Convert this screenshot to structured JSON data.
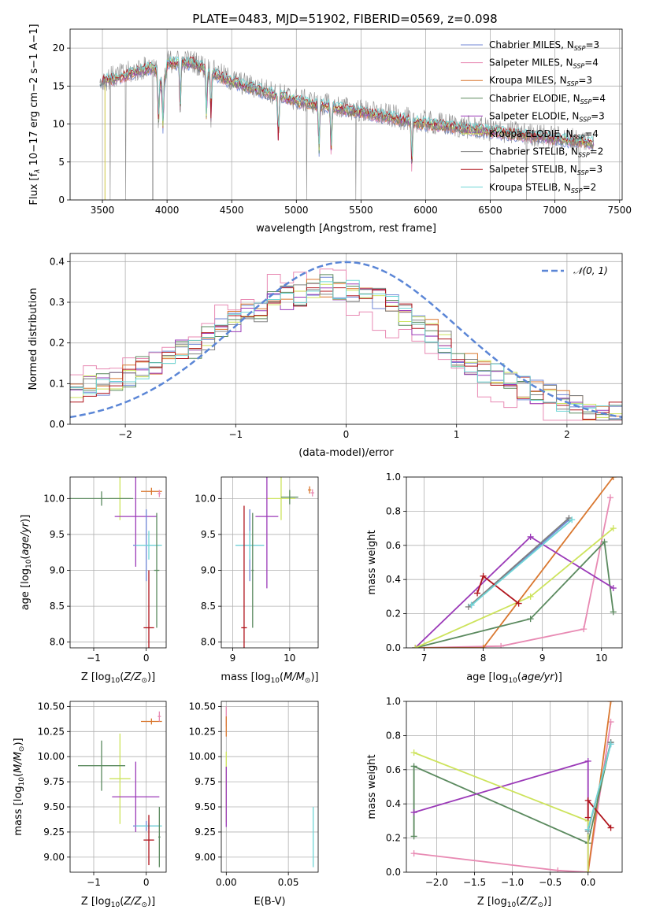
{
  "title": "PLATE=0483, MJD=51902, FIBERID=0569, z=0.098",
  "colors": {
    "chabrier_miles": "#6f86d6",
    "salpeter_miles": "#e88ab3",
    "kroupa_miles": "#d9772f",
    "chabrier_elodie": "#5b8a5f",
    "salpeter_elodie": "#9b3ab8",
    "kroupa_elodie": "#cde35c",
    "chabrier_stelib": "#808080",
    "salpeter_stelib": "#b0141c",
    "kroupa_stelib": "#6fd6d6",
    "gauss": "#5b86d6",
    "grid": "#b0b0b0"
  },
  "legend1": {
    "entries": [
      {
        "base": "Chabrier MILES, N",
        "sub": "SSP",
        "tail": "=3",
        "color": "chabrier_miles"
      },
      {
        "base": "Salpeter MILES, N",
        "sub": "SSP",
        "tail": "=4",
        "color": "salpeter_miles"
      },
      {
        "base": "Kroupa MILES, N",
        "sub": "SSP",
        "tail": "=3",
        "color": "kroupa_miles"
      },
      {
        "base": "Chabrier ELODIE, N",
        "sub": "SSP",
        "tail": "=4",
        "color": "chabrier_elodie"
      },
      {
        "base": "Salpeter ELODIE, N",
        "sub": "SSP",
        "tail": "=3",
        "color": "salpeter_elodie"
      },
      {
        "base": "Kroupa ELODIE, N",
        "sub": "SSP",
        "tail": "=4",
        "color": "kroupa_elodie"
      },
      {
        "base": "Chabrier STELIB, N",
        "sub": "SSP",
        "tail": "=2",
        "color": "chabrier_stelib"
      },
      {
        "base": "Salpeter STELIB, N",
        "sub": "SSP",
        "tail": "=3",
        "color": "salpeter_stelib"
      },
      {
        "base": "Kroupa STELIB, N",
        "sub": "SSP",
        "tail": "=2",
        "color": "kroupa_stelib"
      }
    ]
  },
  "legend2": {
    "label": "𝒩(0, 1)"
  },
  "chart_data": [
    {
      "type": "line",
      "title": "PLATE=0483, MJD=51902, FIBERID=0569, z=0.098",
      "xlabel": "wavelength [Angstrom, rest frame]",
      "ylabel_parts": [
        "Flux [f",
        "λ",
        "10",
        "−17",
        " erg cm",
        "−2",
        " s",
        "−1",
        " A",
        "−1",
        "]"
      ],
      "xlim": [
        3250,
        7520
      ],
      "ylim": [
        0,
        22.5
      ],
      "xticks": [
        3500,
        4000,
        4500,
        5000,
        5500,
        6000,
        6500,
        7000,
        7500
      ],
      "yticks": [
        0,
        5,
        10,
        15,
        20
      ],
      "continuum": {
        "x": [
          3480,
          3600,
          3800,
          4000,
          4200,
          4500,
          5000,
          5500,
          6000,
          6500,
          7000,
          7300
        ],
        "y": [
          15.5,
          16,
          17,
          18,
          18,
          15.5,
          13,
          11.5,
          10,
          9,
          8,
          7.5
        ]
      },
      "absorption_lines": [
        3934,
        3969,
        4102,
        4305,
        4340,
        4861,
        5175,
        5270,
        5893
      ],
      "spikes": [
        3560,
        3680,
        3890,
        5080,
        5460,
        6780,
        7190
      ],
      "x_range": [
        3480,
        7300
      ]
    },
    {
      "type": "line",
      "xlabel": "(data-model)/error",
      "ylabel": "Normed distribution",
      "xlim": [
        -2.5,
        2.5
      ],
      "ylim": [
        0,
        0.42
      ],
      "xticks": [
        -2,
        -1,
        0,
        1,
        2
      ],
      "yticks": [
        0.0,
        0.1,
        0.2,
        0.3,
        0.4
      ],
      "bin_edges": [
        -2.5,
        2.5
      ],
      "n_bins": 42,
      "histogram_base": [
        0.08,
        0.09,
        0.1,
        0.11,
        0.12,
        0.14,
        0.15,
        0.16,
        0.18,
        0.19,
        0.21,
        0.23,
        0.25,
        0.27,
        0.28,
        0.3,
        0.31,
        0.32,
        0.33,
        0.34,
        0.33,
        0.33,
        0.32,
        0.31,
        0.29,
        0.27,
        0.25,
        0.23,
        0.2,
        0.17,
        0.15,
        0.13,
        0.12,
        0.1,
        0.09,
        0.08,
        0.07,
        0.06,
        0.05,
        0.04,
        0.03,
        0.025
      ],
      "gaussian": {
        "mu": 0,
        "sigma": 1
      }
    },
    {
      "type": "scatter",
      "xlabel": "Z [log10(Z/Z⊙)]",
      "ylabel": "age  [log10(age/yr)]",
      "xlim": [
        -1.45,
        0.38
      ],
      "ylim": [
        7.92,
        10.3
      ],
      "xticks": [
        -1,
        0
      ],
      "yticks": [
        8.0,
        8.5,
        9.0,
        9.5,
        10.0
      ],
      "points": [
        {
          "x": 0.1,
          "y": 10.1,
          "xerr": 0.2,
          "yerr": 0.05,
          "color": "kroupa_miles"
        },
        {
          "x": 0.25,
          "y": 10.07,
          "xerr": 0.03,
          "yerr": 0.05,
          "color": "salpeter_miles"
        },
        {
          "x": -0.5,
          "y": 10.0,
          "xerr": 0.2,
          "yerr": 0.3,
          "color": "kroupa_elodie"
        },
        {
          "x": -0.85,
          "y": 10.0,
          "xerr": 0.6,
          "yerr": 0.1,
          "color": "chabrier_elodie"
        },
        {
          "x": -0.2,
          "y": 9.75,
          "xerr": 0.4,
          "yerr": 0.7,
          "color": "salpeter_elodie"
        },
        {
          "x": 0.0,
          "y": 9.35,
          "xerr": 0.25,
          "yerr": 0.5,
          "color": "chabrier_miles"
        },
        {
          "x": 0.05,
          "y": 9.35,
          "xerr": 0.25,
          "yerr": 0.2,
          "color": "kroupa_stelib"
        },
        {
          "x": 0.2,
          "y": 9.0,
          "xerr": 0.05,
          "yerr": 0.8,
          "color": "chabrier_elodie"
        },
        {
          "x": 0.05,
          "y": 8.2,
          "xerr": 0.1,
          "yerr": 0.8,
          "color": "salpeter_stelib"
        }
      ]
    },
    {
      "type": "scatter",
      "xlabel": "mass [log10(M/M⊙)]",
      "xlim": [
        8.8,
        10.5
      ],
      "ylim": [
        7.92,
        10.3
      ],
      "xticks": [
        9,
        10
      ],
      "yticks": [
        8.0,
        8.5,
        9.0,
        9.5,
        10.0
      ],
      "points": [
        {
          "x": 10.35,
          "y": 10.12,
          "xerr": 0.03,
          "yerr": 0.05,
          "color": "kroupa_miles"
        },
        {
          "x": 10.4,
          "y": 10.08,
          "xerr": 0.03,
          "yerr": 0.05,
          "color": "salpeter_miles"
        },
        {
          "x": 9.85,
          "y": 10.0,
          "xerr": 0.25,
          "yerr": 0.3,
          "color": "kroupa_elodie"
        },
        {
          "x": 10.0,
          "y": 10.02,
          "xerr": 0.15,
          "yerr": 0.1,
          "color": "chabrier_elodie"
        },
        {
          "x": 9.6,
          "y": 9.75,
          "xerr": 0.2,
          "yerr": 1.0,
          "color": "salpeter_elodie"
        },
        {
          "x": 9.3,
          "y": 9.35,
          "xerr": 0.25,
          "yerr": 0.5,
          "color": "chabrier_miles"
        },
        {
          "x": 9.3,
          "y": 9.35,
          "xerr": 0.25,
          "yerr": 0.2,
          "color": "kroupa_stelib"
        },
        {
          "x": 9.35,
          "y": 9.0,
          "xerr": 0.02,
          "yerr": 0.8,
          "color": "chabrier_elodie"
        },
        {
          "x": 9.2,
          "y": 8.2,
          "xerr": 0.05,
          "yerr": 1.7,
          "color": "salpeter_stelib"
        }
      ]
    },
    {
      "type": "line",
      "xlabel": "age  [log10(age/yr)]",
      "ylabel": "mass weight",
      "xlim": [
        6.7,
        10.35
      ],
      "ylim": [
        0,
        1.0
      ],
      "xticks": [
        7,
        8,
        9,
        10
      ],
      "yticks": [
        0.0,
        0.2,
        0.4,
        0.6,
        0.8,
        1.0
      ],
      "series": [
        {
          "color": "chabrier_miles",
          "x": [
            7.8,
            9.45
          ],
          "y": [
            0.25,
            0.75
          ]
        },
        {
          "color": "salpeter_miles",
          "x": [
            6.85,
            8.3,
            9.7,
            10.15
          ],
          "y": [
            0.0,
            0.01,
            0.11,
            0.88
          ]
        },
        {
          "color": "kroupa_miles",
          "x": [
            6.85,
            8.0,
            10.2
          ],
          "y": [
            0.0,
            0.0,
            1.0
          ]
        },
        {
          "color": "chabrier_elodie",
          "x": [
            6.85,
            8.8,
            10.05,
            10.2
          ],
          "y": [
            0.0,
            0.17,
            0.62,
            0.21
          ]
        },
        {
          "color": "salpeter_elodie",
          "x": [
            6.85,
            8.8,
            10.2
          ],
          "y": [
            0.0,
            0.65,
            0.35
          ]
        },
        {
          "color": "kroupa_elodie",
          "x": [
            6.85,
            8.8,
            10.2
          ],
          "y": [
            0.0,
            0.3,
            0.7
          ]
        },
        {
          "color": "chabrier_stelib",
          "x": [
            7.75,
            9.45
          ],
          "y": [
            0.24,
            0.76
          ]
        },
        {
          "color": "salpeter_stelib",
          "x": [
            7.9,
            8.0,
            8.6
          ],
          "y": [
            0.32,
            0.42,
            0.26
          ]
        },
        {
          "color": "kroupa_stelib",
          "x": [
            7.8,
            9.5
          ],
          "y": [
            0.25,
            0.75
          ]
        }
      ]
    },
    {
      "type": "scatter",
      "xlabel": "Z [log10(Z/Z⊙)]",
      "ylabel": "mass [log10(M/M⊙)]",
      "xlim": [
        -1.45,
        0.38
      ],
      "ylim": [
        8.85,
        10.55
      ],
      "xticks": [
        -1,
        0
      ],
      "yticks": [
        9.0,
        9.25,
        9.5,
        9.75,
        10.0,
        10.25,
        10.5
      ],
      "points": [
        {
          "x": 0.1,
          "y": 10.35,
          "xerr": 0.2,
          "yerr": 0.03,
          "color": "kroupa_miles"
        },
        {
          "x": 0.25,
          "y": 10.4,
          "xerr": 0.03,
          "yerr": 0.05,
          "color": "salpeter_miles"
        },
        {
          "x": -0.5,
          "y": 9.78,
          "xerr": 0.2,
          "yerr": 0.45,
          "color": "kroupa_elodie"
        },
        {
          "x": -0.85,
          "y": 9.91,
          "xerr": 0.45,
          "yerr": 0.25,
          "color": "chabrier_elodie"
        },
        {
          "x": -0.2,
          "y": 9.6,
          "xerr": 0.45,
          "yerr": 0.35,
          "color": "salpeter_elodie"
        },
        {
          "x": 0.0,
          "y": 9.31,
          "xerr": 0.25,
          "yerr": 0.05,
          "color": "chabrier_miles"
        },
        {
          "x": 0.05,
          "y": 9.31,
          "xerr": 0.25,
          "yerr": 0.03,
          "color": "kroupa_stelib"
        },
        {
          "x": 0.25,
          "y": 9.2,
          "xerr": 0.02,
          "yerr": 0.3,
          "color": "chabrier_elodie"
        },
        {
          "x": 0.05,
          "y": 9.17,
          "xerr": 0.1,
          "yerr": 0.25,
          "color": "salpeter_stelib"
        }
      ]
    },
    {
      "type": "scatter",
      "xlabel": "E(B-V)",
      "xlim": [
        -0.004,
        0.074
      ],
      "ylim": [
        8.85,
        10.55
      ],
      "xticks": [
        0.0,
        0.05
      ],
      "yticks": [
        9.0,
        9.25,
        9.5,
        9.75,
        10.0,
        10.25,
        10.5
      ],
      "points": [
        {
          "x": 0.0,
          "y": 10.4,
          "xerr": 0.0,
          "yerr": 0.1,
          "color": "salpeter_miles"
        },
        {
          "x": 0.0,
          "y": 10.3,
          "xerr": 0.0,
          "yerr": 0.1,
          "color": "kroupa_miles"
        },
        {
          "x": 0.0,
          "y": 9.7,
          "xerr": 0.0,
          "yerr": 0.35,
          "color": "kroupa_elodie"
        },
        {
          "x": 0.0,
          "y": 9.6,
          "xerr": 0.0,
          "yerr": 0.3,
          "color": "salpeter_elodie"
        },
        {
          "x": 0.07,
          "y": 9.2,
          "xerr": 0.0,
          "yerr": 0.3,
          "color": "kroupa_stelib"
        }
      ]
    },
    {
      "type": "line",
      "xlabel": "Z [log10(Z/Z⊙)]",
      "ylabel": "mass weight",
      "xlim": [
        -2.4,
        0.45
      ],
      "ylim": [
        0,
        1.0
      ],
      "xticks": [
        -2.0,
        -1.5,
        -1.0,
        -0.5,
        0.0
      ],
      "yticks": [
        0.0,
        0.2,
        0.4,
        0.6,
        0.8,
        1.0
      ],
      "series": [
        {
          "color": "chabrier_miles",
          "x": [
            0.0,
            0.3
          ],
          "y": [
            0.25,
            0.75
          ]
        },
        {
          "color": "salpeter_miles",
          "x": [
            -2.3,
            -0.4,
            0.0,
            0.3
          ],
          "y": [
            0.11,
            0.01,
            0.0,
            0.88
          ]
        },
        {
          "color": "kroupa_miles",
          "x": [
            0.0,
            0.3
          ],
          "y": [
            0.0,
            1.0
          ]
        },
        {
          "color": "chabrier_elodie",
          "x": [
            -2.3,
            -2.3,
            0.0,
            0.3
          ],
          "y": [
            0.21,
            0.62,
            0.17,
            0.76
          ]
        },
        {
          "color": "salpeter_elodie",
          "x": [
            -2.3,
            0.0,
            0.0
          ],
          "y": [
            0.35,
            0.65,
            0.0
          ]
        },
        {
          "color": "kroupa_elodie",
          "x": [
            -2.3,
            0.0,
            0.0
          ],
          "y": [
            0.7,
            0.3,
            0.0
          ]
        },
        {
          "color": "chabrier_stelib",
          "x": [
            0.0,
            0.3
          ],
          "y": [
            0.24,
            0.76
          ]
        },
        {
          "color": "salpeter_stelib",
          "x": [
            0.0,
            0.0,
            0.3
          ],
          "y": [
            0.32,
            0.42,
            0.26
          ]
        },
        {
          "color": "kroupa_stelib",
          "x": [
            0.0,
            0.3
          ],
          "y": [
            0.25,
            0.75
          ]
        }
      ]
    }
  ]
}
